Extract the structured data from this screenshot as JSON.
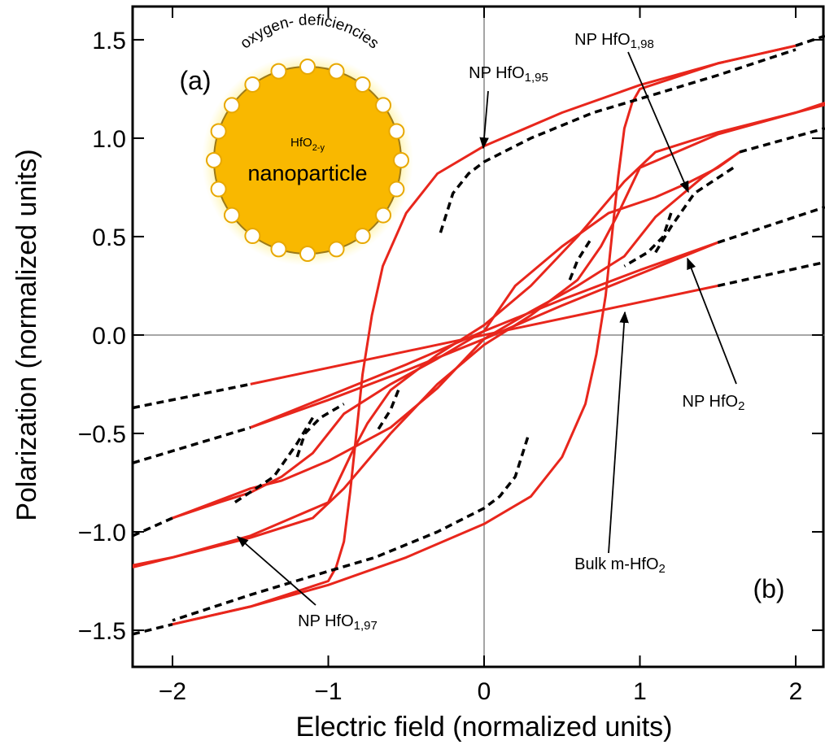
{
  "chart_data": {
    "type": "line",
    "xlabel": "Electric field (normalized units)",
    "ylabel": "Polarization (normalized units)",
    "xlim": [
      -2.256,
      2.188
    ],
    "ylim": [
      -1.686,
      1.669
    ],
    "xticks": [
      {
        "value": -2,
        "label": "−2"
      },
      {
        "value": -1,
        "label": "−1"
      },
      0,
      1,
      2
    ],
    "yticks": [
      {
        "value": -1.5,
        "label": "−1.5"
      },
      {
        "value": -1,
        "label": "−1.0"
      },
      {
        "value": -0.5,
        "label": "−0.5"
      },
      {
        "value": 0,
        "label": "0.0"
      },
      0.5,
      {
        "value": 1,
        "label": "1.0"
      },
      1.5
    ],
    "zero_lines": true,
    "series": [
      {
        "color": "#e8261c",
        "dashed": false,
        "x": [
          -1.5,
          1.5
        ],
        "y": [
          -0.25,
          0.25
        ]
      },
      {
        "color": "#000000",
        "dashed": true,
        "x": [
          1.5,
          2.188
        ],
        "y": [
          0.25,
          0.37
        ]
      },
      {
        "color": "#000000",
        "dashed": true,
        "x": [
          -2.256,
          -1.5
        ],
        "y": [
          -0.37,
          -0.25
        ]
      },
      {
        "color": "#e8261c",
        "dashed": false,
        "x": [
          1.5,
          1,
          0.5,
          0,
          -0.5,
          -1,
          -1.5
        ],
        "y": [
          0.47,
          0.33,
          0.18,
          0.02,
          -0.15,
          -0.31,
          -0.47
        ]
      },
      {
        "color": "#e8261c",
        "dashed": false,
        "x": [
          -1.5,
          -1,
          -0.5,
          0,
          0.5,
          1,
          1.5
        ],
        "y": [
          -0.47,
          -0.33,
          -0.18,
          -0.02,
          0.15,
          0.31,
          0.47
        ]
      },
      {
        "color": "#000000",
        "dashed": true,
        "x": [
          1.5,
          2.188
        ],
        "y": [
          0.47,
          0.65
        ]
      },
      {
        "color": "#000000",
        "dashed": true,
        "x": [
          -2.256,
          -1.5
        ],
        "y": [
          -0.65,
          -0.47
        ]
      },
      {
        "color": "#e8261c",
        "dashed": false,
        "x": [
          -2,
          -1.7,
          -1.5,
          -1.3,
          -1,
          -0.6,
          -0.3,
          0,
          0.3,
          0.6,
          0.9,
          1.1,
          1.25,
          1.4,
          1.64
        ],
        "y": [
          -0.93,
          -0.84,
          -0.78,
          -0.74,
          -0.64,
          -0.47,
          -0.27,
          -0.02,
          0.12,
          0.25,
          0.4,
          0.6,
          0.7,
          0.8,
          0.93
        ]
      },
      {
        "color": "#e8261c",
        "dashed": false,
        "x": [
          1.64,
          1.5,
          1.3,
          1.1,
          0.8,
          0.5,
          0.2,
          0,
          -0.3,
          -0.6,
          -0.9,
          -1.1,
          -1.3,
          -1.5,
          -1.7,
          -2
        ],
        "y": [
          0.93,
          0.85,
          0.77,
          0.7,
          0.62,
          0.45,
          0.25,
          0.02,
          -0.12,
          -0.25,
          -0.4,
          -0.6,
          -0.72,
          -0.8,
          -0.85,
          -0.93
        ]
      },
      {
        "color": "#000000",
        "dashed": true,
        "x": [
          1.64,
          2.188
        ],
        "y": [
          0.93,
          1.05
        ]
      },
      {
        "color": "#000000",
        "dashed": true,
        "x": [
          -2.256,
          -2
        ],
        "y": [
          -1.02,
          -0.93
        ]
      },
      {
        "color": "#000000",
        "dashed": true,
        "x": [
          1.1,
          1.2,
          1.35,
          1.6
        ],
        "y": [
          0.42,
          0.55,
          0.72,
          0.85
        ]
      },
      {
        "color": "#000000",
        "dashed": true,
        "x": [
          -1.1,
          -1.2,
          -1.35,
          -1.6
        ],
        "y": [
          -0.42,
          -0.55,
          -0.72,
          -0.85
        ]
      },
      {
        "color": "#e8261c",
        "dashed": false,
        "x": [
          -2.256,
          -2,
          -1.5,
          -1.1,
          -0.9,
          -0.6,
          -0.3,
          0,
          0.3,
          0.6,
          0.75,
          0.85,
          1,
          1.5,
          2,
          2.188
        ],
        "y": [
          -1.18,
          -1.13,
          -1.03,
          -0.93,
          -0.78,
          -0.5,
          -0.25,
          -0.05,
          0.1,
          0.28,
          0.45,
          0.6,
          0.85,
          1.02,
          1.13,
          1.17
        ]
      },
      {
        "color": "#e8261c",
        "dashed": false,
        "x": [
          2.188,
          2,
          1.5,
          1.1,
          0.9,
          0.6,
          0.3,
          0,
          -0.3,
          -0.6,
          -0.75,
          -0.85,
          -1,
          -1.5,
          -2,
          -2.256
        ],
        "y": [
          1.18,
          1.13,
          1.03,
          0.93,
          0.78,
          0.5,
          0.25,
          0.05,
          -0.1,
          -0.28,
          -0.45,
          -0.6,
          -0.85,
          -1.02,
          -1.13,
          -1.17
        ]
      },
      {
        "color": "#000000",
        "dashed": true,
        "x": [
          0.55,
          0.6,
          0.68
        ],
        "y": [
          0.28,
          0.38,
          0.48
        ]
      },
      {
        "color": "#000000",
        "dashed": true,
        "x": [
          -0.55,
          -0.6,
          -0.68
        ],
        "y": [
          -0.28,
          -0.38,
          -0.48
        ]
      },
      {
        "color": "#000000",
        "dashed": true,
        "x": [
          -1.2,
          -1.15,
          -1.05,
          -0.9
        ],
        "y": [
          -0.62,
          -0.5,
          -0.42,
          -0.35
        ]
      },
      {
        "color": "#000000",
        "dashed": true,
        "x": [
          1.2,
          1.15,
          1.05,
          0.9
        ],
        "y": [
          0.62,
          0.5,
          0.42,
          0.35
        ]
      },
      {
        "color": "#e8261c",
        "dashed": false,
        "x": [
          2,
          1.5,
          1,
          0.5,
          0,
          -0.3,
          -0.5,
          -0.65,
          -0.72,
          -0.78,
          -0.82,
          -0.86,
          -0.9,
          -0.95,
          -1,
          -1.5,
          -2
        ],
        "y": [
          1.47,
          1.38,
          1.27,
          1.13,
          0.96,
          0.82,
          0.62,
          0.35,
          0.1,
          -0.2,
          -0.5,
          -0.8,
          -1.05,
          -1.18,
          -1.25,
          -1.38,
          -1.47
        ]
      },
      {
        "color": "#e8261c",
        "dashed": false,
        "x": [
          -2,
          -1.5,
          -1,
          -0.5,
          0,
          0.3,
          0.5,
          0.65,
          0.72,
          0.78,
          0.82,
          0.86,
          0.9,
          0.95,
          1,
          1.5,
          2
        ],
        "y": [
          -1.47,
          -1.38,
          -1.27,
          -1.13,
          -0.96,
          -0.82,
          -0.62,
          -0.35,
          -0.1,
          0.2,
          0.5,
          0.8,
          1.05,
          1.18,
          1.25,
          1.38,
          1.47
        ]
      },
      {
        "color": "#000000",
        "dashed": true,
        "x": [
          -0.28,
          -0.2,
          -0.1,
          0,
          0.3,
          0.7,
          1,
          1.5,
          2
        ],
        "y": [
          0.52,
          0.72,
          0.82,
          0.88,
          1.0,
          1.13,
          1.2,
          1.32,
          1.45
        ]
      },
      {
        "color": "#000000",
        "dashed": true,
        "x": [
          0.28,
          0.2,
          0.1,
          0,
          -0.3,
          -0.7,
          -1,
          -1.5,
          -2
        ],
        "y": [
          -0.52,
          -0.72,
          -0.82,
          -0.88,
          -1.0,
          -1.13,
          -1.2,
          -1.32,
          -1.45
        ]
      },
      {
        "color": "#000000",
        "dashed": true,
        "x": [
          2,
          2.188
        ],
        "y": [
          1.47,
          1.52
        ]
      },
      {
        "color": "#000000",
        "dashed": true,
        "x": [
          -2.256,
          -2
        ],
        "y": [
          -1.52,
          -1.47
        ]
      }
    ],
    "annotations": [
      {
        "text": "NP HfO",
        "sub": "1,95"
      },
      {
        "text": "NP HfO",
        "sub": "1,98"
      },
      {
        "text": "NP HfO",
        "sub": "2"
      },
      {
        "text": "Bulk m-HfO",
        "sub": "2"
      },
      {
        "text": "NP HfO",
        "sub": "1,97"
      }
    ],
    "panel_labels": [
      "(a)",
      "(b)"
    ],
    "inset": {
      "arc_text": "oxygen- deficiencies",
      "formula": "HfO",
      "formula_sub": "2-y",
      "label": "nanoparticle"
    }
  }
}
